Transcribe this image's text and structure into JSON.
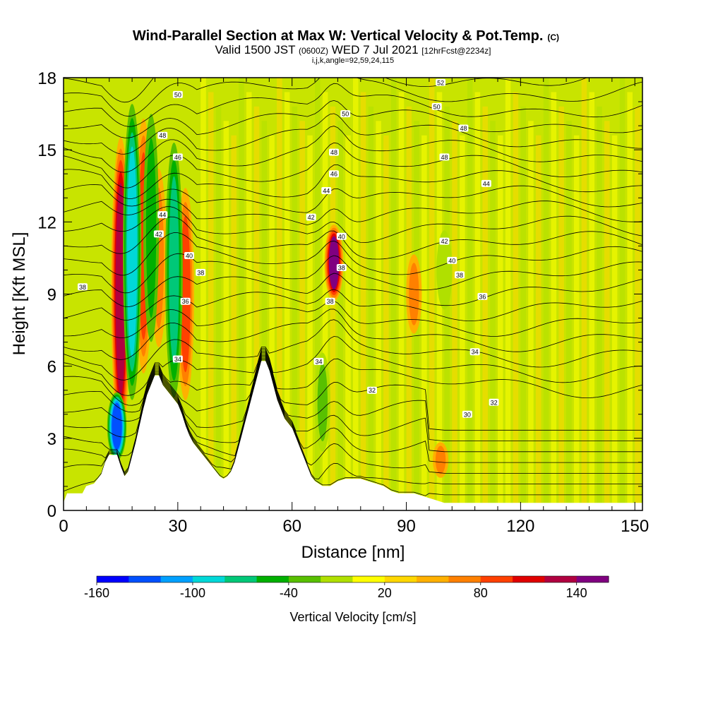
{
  "chart_data": {
    "type": "heatmap",
    "title_main": "Wind-Parallel Section at Max W: Vertical Velocity & Pot.Temp.",
    "title_mark": "(C)",
    "subtitle_a": "Valid 1500 JST ",
    "subtitle_b": "(0600Z)",
    "subtitle_c": " WED 7 Jul 2021 ",
    "subtitle_d": "[12hrFcst@2234z]",
    "subtitle_line3": "i,j,k,angle=92,59,24,115",
    "xlabel": "Distance [nm]",
    "ylabel": "Height [Kft MSL]",
    "xlim": [
      0,
      152
    ],
    "ylim": [
      0,
      18
    ],
    "xticks": [
      "0",
      "30",
      "60",
      "90",
      "120",
      "150"
    ],
    "yticks": [
      "0",
      "3",
      "6",
      "9",
      "12",
      "15",
      "18"
    ],
    "colorbar": {
      "title": "Vertical Velocity [cm/s]",
      "tick_labels": [
        "-160",
        "-100",
        "-40",
        "20",
        "80",
        "140"
      ],
      "colors": [
        "#0000ff",
        "#0050ff",
        "#00a0ff",
        "#00d8d8",
        "#00c878",
        "#00b000",
        "#58c000",
        "#b0e000",
        "#ffff00",
        "#ffd700",
        "#ffb000",
        "#ff8000",
        "#ff4000",
        "#e00000",
        "#b00040",
        "#800080"
      ]
    },
    "terrain": [
      [
        0,
        0.3
      ],
      [
        1,
        0.7
      ],
      [
        5,
        0.7
      ],
      [
        6,
        1.0
      ],
      [
        8,
        1.1
      ],
      [
        10,
        1.5
      ],
      [
        11,
        2.0
      ],
      [
        12,
        2.3
      ],
      [
        13,
        2.3
      ],
      [
        14,
        2.3
      ],
      [
        15,
        1.8
      ],
      [
        16,
        1.4
      ],
      [
        17,
        1.6
      ],
      [
        18,
        2.2
      ],
      [
        19,
        2.8
      ],
      [
        20,
        3.5
      ],
      [
        21,
        4.2
      ],
      [
        22,
        4.8
      ],
      [
        23,
        5.2
      ],
      [
        24,
        5.6
      ],
      [
        25,
        5.6
      ],
      [
        26,
        5.2
      ],
      [
        27,
        5.0
      ],
      [
        28,
        4.8
      ],
      [
        29,
        4.6
      ],
      [
        30,
        4.4
      ],
      [
        31,
        4.0
      ],
      [
        32,
        3.5
      ],
      [
        33,
        3.1
      ],
      [
        34,
        2.8
      ],
      [
        35,
        2.6
      ],
      [
        36,
        2.4
      ],
      [
        37,
        2.2
      ],
      [
        38,
        2.0
      ],
      [
        39,
        1.8
      ],
      [
        40,
        1.6
      ],
      [
        41,
        1.4
      ],
      [
        42,
        1.3
      ],
      [
        43,
        1.4
      ],
      [
        44,
        1.6
      ],
      [
        45,
        2.0
      ],
      [
        46,
        2.6
      ],
      [
        47,
        3.2
      ],
      [
        48,
        3.8
      ],
      [
        49,
        4.4
      ],
      [
        50,
        5.0
      ],
      [
        51,
        5.6
      ],
      [
        52,
        6.2
      ],
      [
        53,
        6.2
      ],
      [
        54,
        5.8
      ],
      [
        55,
        5.2
      ],
      [
        56,
        4.6
      ],
      [
        57,
        4.2
      ],
      [
        58,
        3.8
      ],
      [
        59,
        3.6
      ],
      [
        60,
        3.4
      ],
      [
        61,
        3.0
      ],
      [
        62,
        2.6
      ],
      [
        63,
        2.2
      ],
      [
        64,
        1.8
      ],
      [
        65,
        1.4
      ],
      [
        66,
        1.2
      ],
      [
        67,
        1.1
      ],
      [
        68,
        1.0
      ],
      [
        70,
        1.0
      ],
      [
        72,
        1.2
      ],
      [
        74,
        1.3
      ],
      [
        76,
        1.3
      ],
      [
        78,
        1.3
      ],
      [
        80,
        1.2
      ],
      [
        82,
        1.1
      ],
      [
        84,
        1.0
      ],
      [
        86,
        0.8
      ],
      [
        88,
        0.7
      ],
      [
        90,
        0.7
      ],
      [
        92,
        0.7
      ],
      [
        94,
        0.6
      ],
      [
        96,
        0.5
      ],
      [
        98,
        0.4
      ],
      [
        100,
        0.3
      ],
      [
        152,
        0.3
      ]
    ],
    "updrafts": [
      {
        "x": 15,
        "top": 16,
        "bottom": 2.4,
        "value": 120
      },
      {
        "x": 21,
        "top": 17,
        "bottom": 5,
        "value": 70
      },
      {
        "x": 25,
        "top": 15,
        "bottom": 6,
        "value": 60
      },
      {
        "x": 32,
        "top": 14,
        "bottom": 4,
        "value": 80
      },
      {
        "x": 71,
        "top": 12,
        "bottom": 8.6,
        "value": 130
      },
      {
        "x": 92,
        "top": 11,
        "bottom": 7,
        "value": 50
      },
      {
        "x": 99,
        "top": 3,
        "bottom": 1.2,
        "value": 60
      }
    ],
    "downdrafts": [
      {
        "x": 14,
        "top": 5,
        "bottom": 2,
        "value": -150
      },
      {
        "x": 18,
        "top": 17.5,
        "bottom": 4,
        "value": -100
      },
      {
        "x": 23,
        "top": 17.5,
        "bottom": 6,
        "value": -60
      },
      {
        "x": 29,
        "top": 16,
        "bottom": 4,
        "value": -80
      },
      {
        "x": 68,
        "top": 7,
        "bottom": 2,
        "value": -50
      },
      {
        "x": 100,
        "top": 12,
        "bottom": 8,
        "value": -30
      }
    ],
    "isentropes": {
      "levels": [
        30,
        32,
        34,
        36,
        38,
        40,
        42,
        44,
        46,
        48,
        50,
        52
      ],
      "labels": [
        {
          "text": "38",
          "x": 5,
          "y": 9.3
        },
        {
          "text": "50",
          "x": 30,
          "y": 17.3
        },
        {
          "text": "48",
          "x": 26,
          "y": 15.6
        },
        {
          "text": "46",
          "x": 30,
          "y": 14.7
        },
        {
          "text": "44",
          "x": 26,
          "y": 12.3
        },
        {
          "text": "42",
          "x": 25,
          "y": 11.5
        },
        {
          "text": "40",
          "x": 33,
          "y": 10.6
        },
        {
          "text": "38",
          "x": 36,
          "y": 9.9
        },
        {
          "text": "36",
          "x": 32,
          "y": 8.7
        },
        {
          "text": "34",
          "x": 30,
          "y": 6.3
        },
        {
          "text": "52",
          "x": 99,
          "y": 17.8
        },
        {
          "text": "50",
          "x": 74,
          "y": 16.5
        },
        {
          "text": "50",
          "x": 98,
          "y": 16.8
        },
        {
          "text": "48",
          "x": 105,
          "y": 15.9
        },
        {
          "text": "48",
          "x": 71,
          "y": 14.9
        },
        {
          "text": "48",
          "x": 100,
          "y": 14.7
        },
        {
          "text": "46",
          "x": 71,
          "y": 14.0
        },
        {
          "text": "44",
          "x": 69,
          "y": 13.3
        },
        {
          "text": "44",
          "x": 111,
          "y": 13.6
        },
        {
          "text": "42",
          "x": 65,
          "y": 12.2
        },
        {
          "text": "40",
          "x": 73,
          "y": 11.4
        },
        {
          "text": "38",
          "x": 73,
          "y": 10.1
        },
        {
          "text": "38",
          "x": 70,
          "y": 8.7
        },
        {
          "text": "42",
          "x": 100,
          "y": 11.2
        },
        {
          "text": "40",
          "x": 102,
          "y": 10.4
        },
        {
          "text": "38",
          "x": 104,
          "y": 9.8
        },
        {
          "text": "36",
          "x": 110,
          "y": 8.9
        },
        {
          "text": "34",
          "x": 67,
          "y": 6.2
        },
        {
          "text": "34",
          "x": 108,
          "y": 6.6
        },
        {
          "text": "32",
          "x": 81,
          "y": 5.0
        },
        {
          "text": "32",
          "x": 113,
          "y": 4.5
        },
        {
          "text": "30",
          "x": 106,
          "y": 4.0
        }
      ]
    }
  }
}
